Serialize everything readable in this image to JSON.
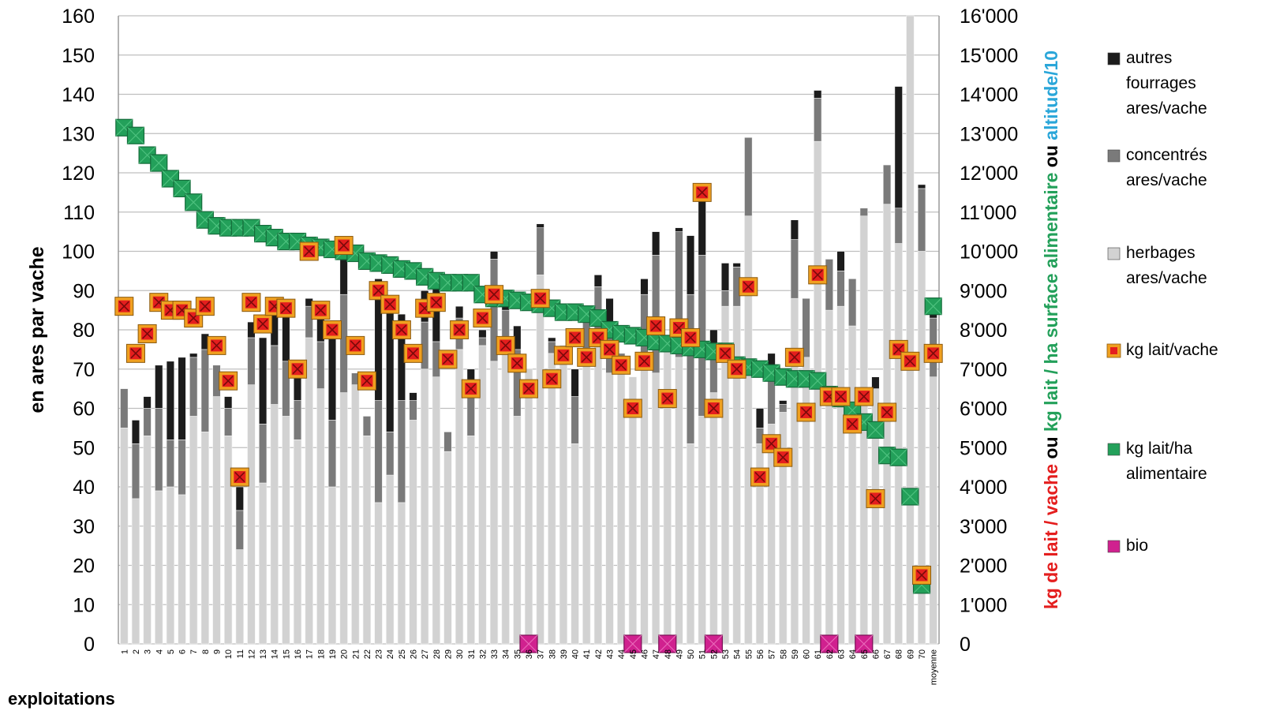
{
  "chart_data": {
    "type": "bar",
    "subtype": "stacked-bar-with-markers",
    "categories": [
      "1",
      "2",
      "3",
      "4",
      "5",
      "6",
      "7",
      "8",
      "9",
      "10",
      "11",
      "12",
      "13",
      "14",
      "15",
      "16",
      "17",
      "18",
      "19",
      "20",
      "21",
      "22",
      "23",
      "24",
      "25",
      "26",
      "27",
      "28",
      "29",
      "30",
      "31",
      "32",
      "33",
      "34",
      "35",
      "36",
      "37",
      "38",
      "39",
      "40",
      "41",
      "42",
      "43",
      "44",
      "45",
      "46",
      "47",
      "48",
      "49",
      "50",
      "51",
      "52",
      "53",
      "54",
      "55",
      "56",
      "57",
      "58",
      "59",
      "60",
      "61",
      "62",
      "63",
      "64",
      "65",
      "66",
      "67",
      "68",
      "69",
      "70",
      "moyenne"
    ],
    "xlabel": "exploitations",
    "ylabel_left": "en ares par vache",
    "ylabel_right": {
      "part1": "kg de lait / vache",
      "sep1": " ou ",
      "part2": "kg lait / ha surface alimentaire",
      "sep2": " ou ",
      "part3": "altitude/10"
    },
    "ylim_left": [
      0,
      160
    ],
    "yticks_left": [
      "0",
      "10",
      "20",
      "30",
      "40",
      "50",
      "60",
      "70",
      "80",
      "90",
      "100",
      "110",
      "120",
      "130",
      "140",
      "150",
      "160"
    ],
    "ylim_right": [
      0,
      16000
    ],
    "yticks_right": [
      "0",
      "1'000",
      "2'000",
      "3'000",
      "4'000",
      "5'000",
      "6'000",
      "7'000",
      "8'000",
      "9'000",
      "10'000",
      "11'000",
      "12'000",
      "13'000",
      "14'000",
      "15'000",
      "16'000"
    ],
    "grid": true,
    "legend_position": "right",
    "colors": {
      "autres": "#1c1c1c",
      "concentres": "#7a7a7a",
      "herbages": "#d2d2d2",
      "lait_vache": "#e41e1e",
      "lait_ha": "#23a05a",
      "bio": "#d0218f"
    },
    "series": [
      {
        "name": "herbages ares/vache",
        "axis": "left",
        "values": [
          55,
          37,
          53,
          39,
          40,
          38,
          58,
          54,
          63,
          53,
          24,
          66,
          41,
          61,
          58,
          52,
          78,
          65,
          40,
          64,
          66,
          53,
          36,
          43,
          36,
          57,
          70,
          68,
          49,
          75,
          53,
          76,
          72,
          75,
          58,
          70,
          94,
          74,
          72,
          51,
          75,
          77,
          69,
          72,
          68,
          73,
          69,
          76,
          73,
          51,
          58,
          64,
          86,
          86,
          109,
          51,
          56,
          59,
          88,
          73,
          128,
          85,
          86,
          81,
          109,
          65,
          112,
          102,
          160,
          100,
          68
        ]
      },
      {
        "name": "concentrés ares/vache",
        "axis": "left",
        "values": [
          10,
          14,
          7,
          21,
          12,
          14,
          15,
          21,
          8,
          7,
          10,
          12,
          15,
          15,
          14,
          10,
          8,
          12,
          17,
          25,
          3,
          5,
          26,
          11,
          26,
          5,
          12,
          9,
          5,
          8,
          12,
          2,
          26,
          10,
          17,
          0,
          12,
          3,
          4,
          12,
          10,
          14,
          10,
          2,
          0,
          16,
          30,
          0,
          32,
          38,
          41,
          10,
          4,
          10,
          20,
          4,
          14,
          2,
          15,
          15,
          11,
          13,
          9,
          12,
          2,
          0,
          10,
          9,
          0,
          16,
          15
        ]
      },
      {
        "name": "autres fourrages ares/vache",
        "axis": "left",
        "values": [
          0,
          6,
          3,
          11,
          20,
          21,
          1,
          4,
          0,
          3,
          6,
          4,
          22,
          10,
          13,
          8,
          2,
          8,
          23,
          10,
          0,
          0,
          31,
          31,
          22,
          2,
          8,
          16,
          0,
          3,
          5,
          2,
          2,
          3,
          6,
          0,
          1,
          1,
          0,
          7,
          0,
          3,
          9,
          0,
          0,
          4,
          6,
          0,
          1,
          15,
          16,
          6,
          7,
          1,
          0,
          5,
          4,
          1,
          5,
          0,
          2,
          0,
          5,
          0,
          0,
          3,
          0,
          31,
          0,
          1,
          2
        ]
      },
      {
        "name": "kg lait/vache",
        "axis": "right",
        "values": [
          8600,
          7400,
          7900,
          8700,
          8500,
          8500,
          8300,
          8600,
          7600,
          6700,
          4250,
          8700,
          8150,
          8600,
          8550,
          7000,
          10000,
          8500,
          8000,
          10150,
          7600,
          6700,
          9000,
          8650,
          8000,
          7400,
          8550,
          8700,
          7250,
          8000,
          6500,
          8300,
          8900,
          7600,
          7150,
          6500,
          8800,
          6750,
          7350,
          7800,
          7300,
          7800,
          7500,
          7100,
          6000,
          7200,
          8100,
          6250,
          8050,
          7800,
          11500,
          6000,
          7400,
          7000,
          9100,
          4250,
          5100,
          4750,
          7300,
          5900,
          9400,
          6300,
          6300,
          5600,
          6300,
          3700,
          5900,
          7500,
          7200,
          1750,
          7400
        ]
      },
      {
        "name": "kg lait/ha alimentaire",
        "axis": "right",
        "values": [
          13150,
          12950,
          12450,
          12250,
          11850,
          11600,
          11250,
          10800,
          10650,
          10600,
          10600,
          10600,
          10450,
          10350,
          10250,
          10250,
          10150,
          10100,
          10050,
          10000,
          9950,
          9750,
          9700,
          9650,
          9550,
          9500,
          9350,
          9250,
          9200,
          9200,
          9200,
          8900,
          8800,
          8800,
          8750,
          8700,
          8650,
          8550,
          8450,
          8450,
          8400,
          8300,
          8000,
          7900,
          7850,
          7800,
          7700,
          7650,
          7600,
          7550,
          7500,
          7450,
          7450,
          7100,
          7050,
          7000,
          6900,
          6800,
          6750,
          6750,
          6700,
          6350,
          6250,
          5950,
          5650,
          5450,
          4800,
          4750,
          3750,
          1500,
          8600
        ]
      },
      {
        "name": "bio",
        "axis": "right",
        "values_at": [
          "36",
          "45",
          "48",
          "52",
          "62",
          "65"
        ],
        "value": 0
      }
    ],
    "legend": [
      {
        "key": "autres",
        "lines": [
          "autres",
          "fourrages",
          "ares/vache"
        ]
      },
      {
        "key": "concentres",
        "lines": [
          "concentrés",
          "ares/vache"
        ]
      },
      {
        "key": "herbages",
        "lines": [
          "herbages",
          "ares/vache"
        ]
      },
      {
        "key": "lait_vache",
        "lines": [
          "kg lait/vache"
        ]
      },
      {
        "key": "lait_ha",
        "lines": [
          "kg lait/ha",
          "alimentaire"
        ]
      },
      {
        "key": "bio",
        "lines": [
          "bio"
        ]
      }
    ]
  }
}
